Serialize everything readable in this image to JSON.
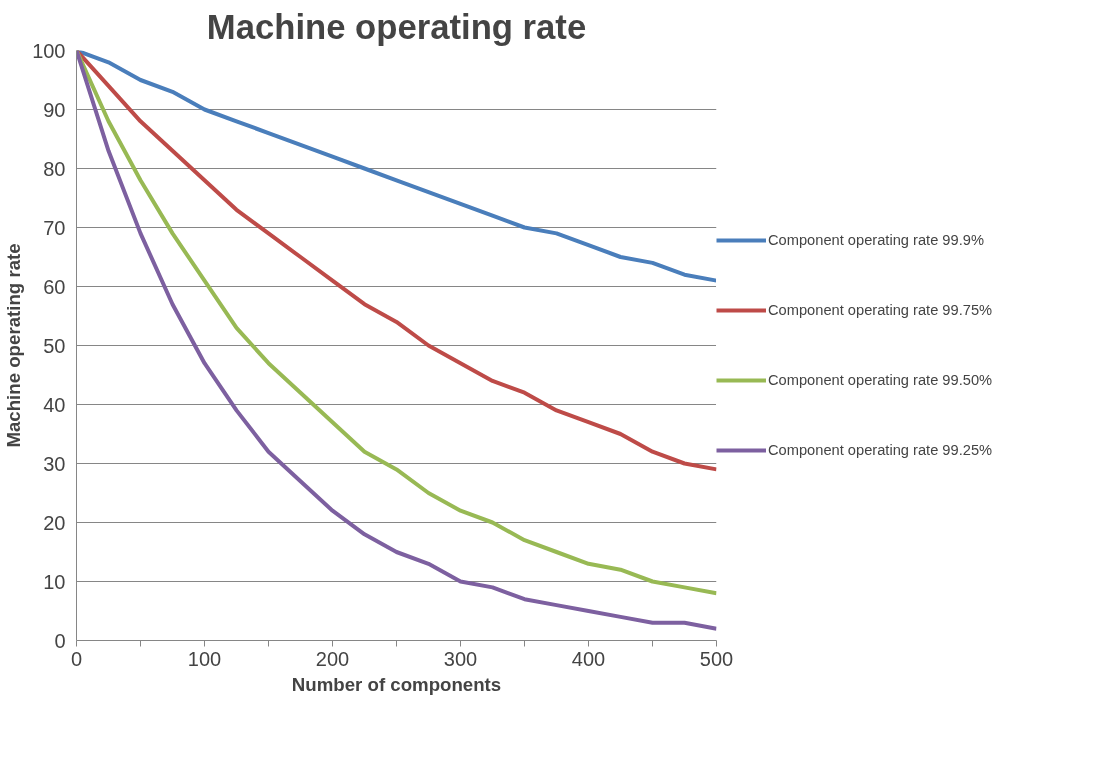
{
  "chart_data": {
    "type": "line",
    "title": "Machine operating rate",
    "xlabel": "Number of components",
    "ylabel": "Machine operating rate",
    "x": [
      0,
      25,
      50,
      75,
      100,
      125,
      150,
      175,
      200,
      225,
      250,
      275,
      300,
      325,
      350,
      375,
      400,
      425,
      450,
      475,
      500
    ],
    "series": [
      {
        "name": "Component operating rate 99.9%",
        "color": "#4a7ebb",
        "values": [
          100,
          98,
          95,
          93,
          90,
          88,
          86,
          84,
          82,
          80,
          78,
          76,
          74,
          72,
          70,
          69,
          67,
          65,
          64,
          62,
          61
        ]
      },
      {
        "name": "Component operating rate 99.75%",
        "color": "#be4b48",
        "values": [
          100,
          94,
          88,
          83,
          78,
          73,
          69,
          65,
          61,
          57,
          54,
          50,
          47,
          44,
          42,
          39,
          37,
          35,
          32,
          30,
          29
        ]
      },
      {
        "name": "Component operating rate 99.50%",
        "color": "#98b954",
        "values": [
          100,
          88,
          78,
          69,
          61,
          53,
          47,
          42,
          37,
          32,
          29,
          25,
          22,
          20,
          17,
          15,
          13,
          12,
          10,
          9,
          8
        ]
      },
      {
        "name": "Component operating rate 99.25%",
        "color": "#7d60a0",
        "values": [
          100,
          83,
          69,
          57,
          47,
          39,
          32,
          27,
          22,
          18,
          15,
          13,
          10,
          9,
          7,
          6,
          5,
          4,
          3,
          3,
          2
        ]
      }
    ],
    "xlim": [
      0,
      500
    ],
    "ylim": [
      0,
      100
    ],
    "xticks": [
      0,
      {
        "value": 50,
        "label": null
      },
      100,
      {
        "value": 150,
        "label": null
      },
      200,
      {
        "value": 250,
        "label": null
      },
      300,
      {
        "value": 350,
        "label": null
      },
      400,
      {
        "value": 450,
        "label": null
      },
      500
    ],
    "yticks": [
      0,
      10,
      20,
      30,
      40,
      50,
      60,
      70,
      80,
      90,
      100
    ],
    "grid": "y",
    "legend": "right",
    "marker": "none",
    "line_style": "solid"
  }
}
